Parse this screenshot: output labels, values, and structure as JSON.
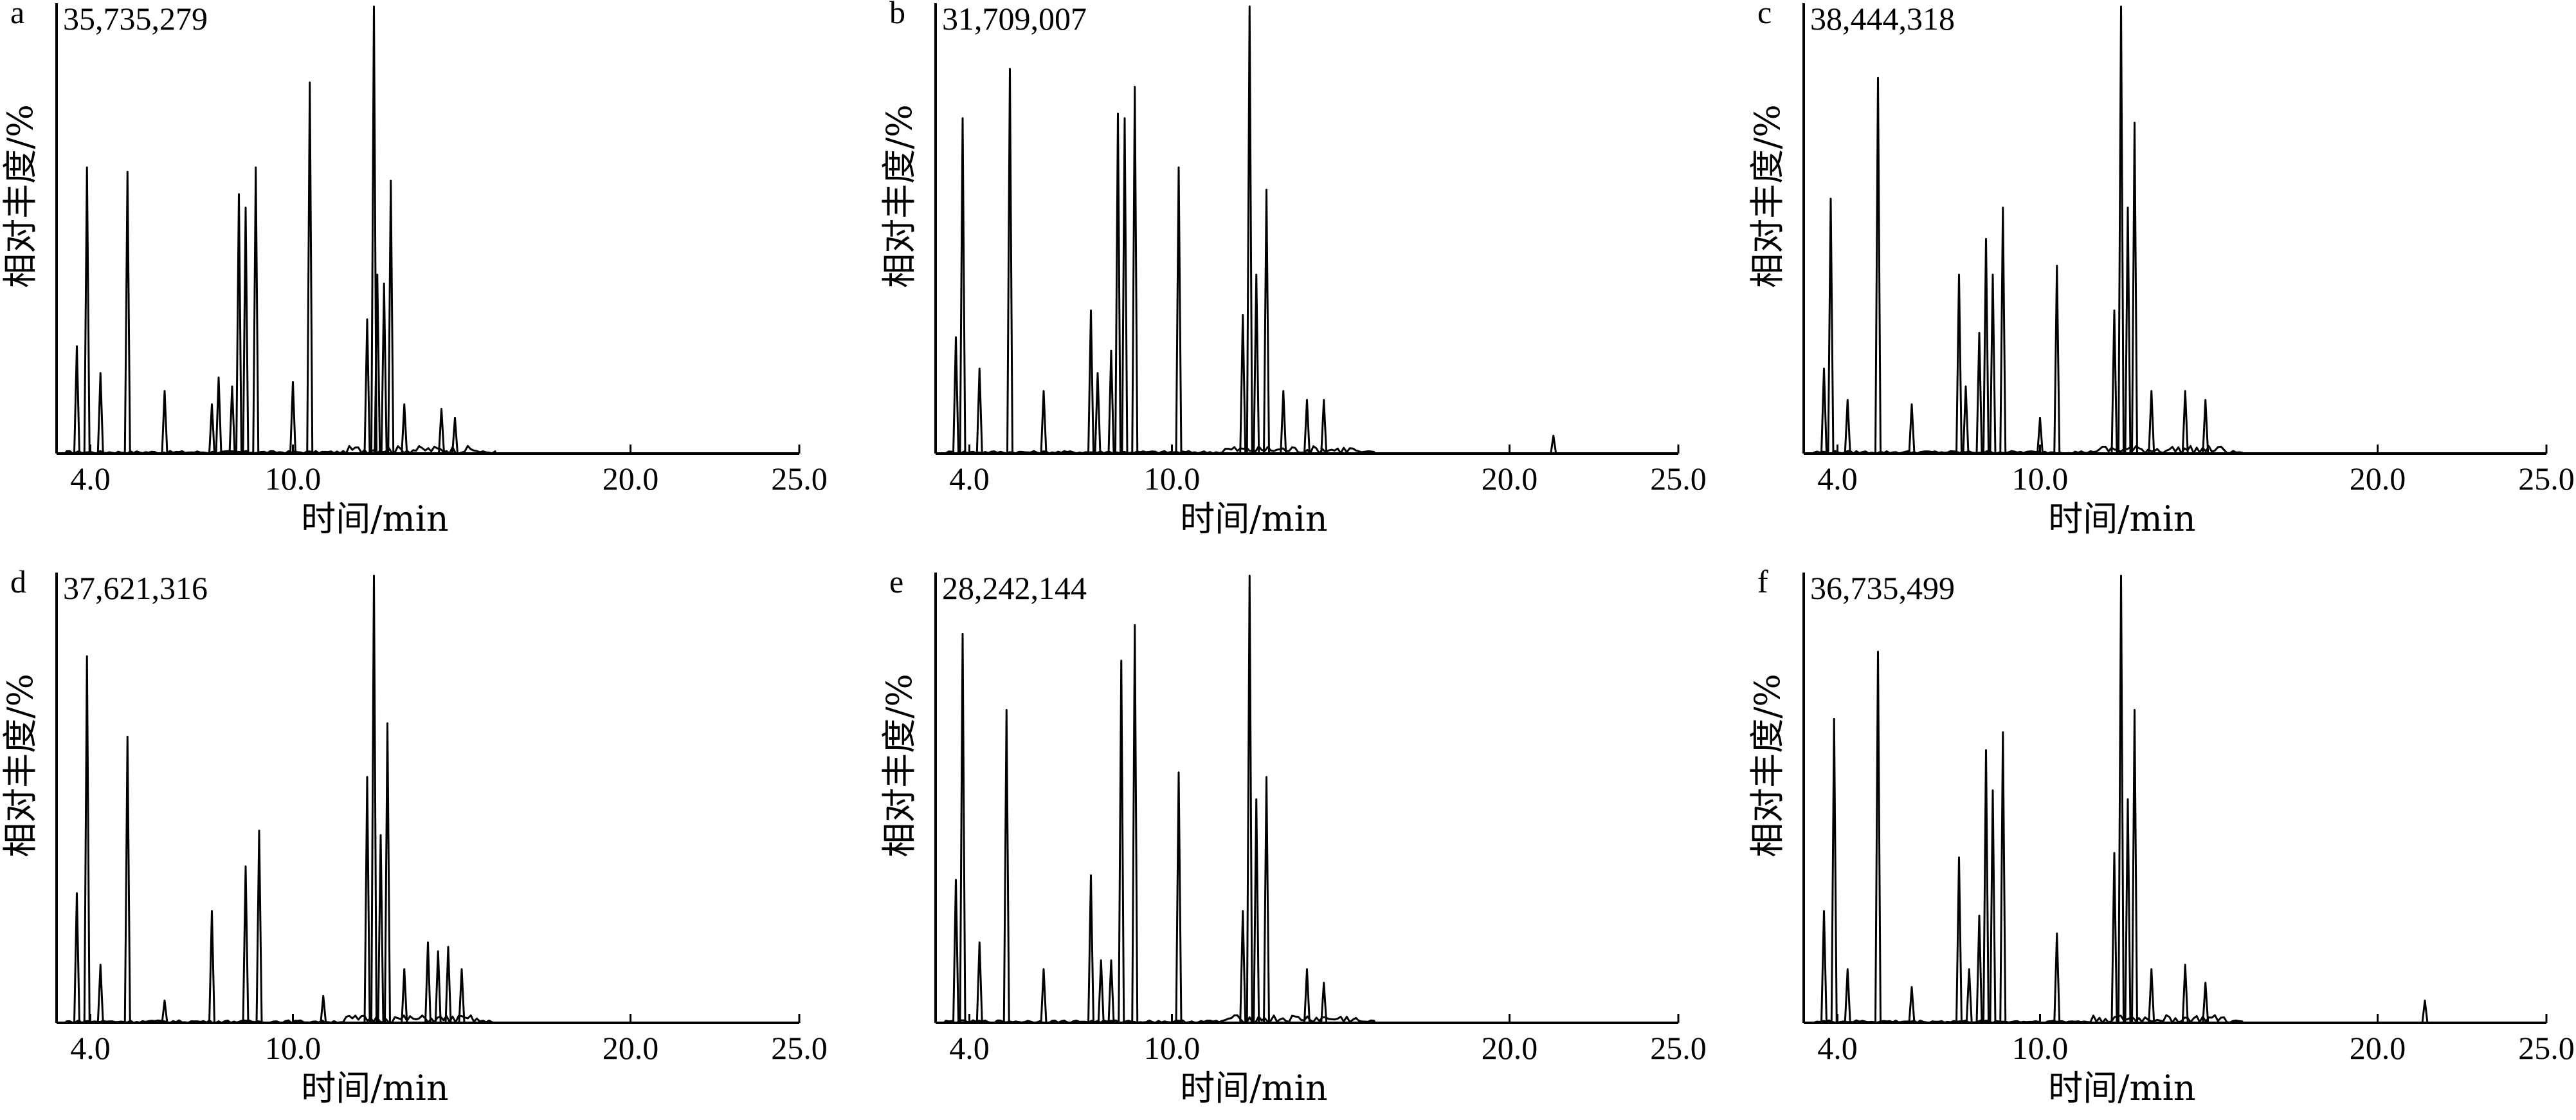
{
  "chart_data": [
    {
      "type": "line",
      "panel_label": "a",
      "max_intensity_label": "35,735,279",
      "xlabel": "时间/min",
      "ylabel": "相对丰度/%",
      "xticks": [
        "4.0",
        "10.0",
        "20.0",
        "25.0"
      ],
      "xlim": [
        3.0,
        25.0
      ],
      "ylim": [
        0,
        100
      ],
      "peaks": [
        {
          "rt": 3.6,
          "abundance": 24
        },
        {
          "rt": 3.9,
          "abundance": 64
        },
        {
          "rt": 4.3,
          "abundance": 18
        },
        {
          "rt": 5.1,
          "abundance": 63
        },
        {
          "rt": 6.2,
          "abundance": 14
        },
        {
          "rt": 7.6,
          "abundance": 11
        },
        {
          "rt": 7.8,
          "abundance": 17
        },
        {
          "rt": 8.2,
          "abundance": 15
        },
        {
          "rt": 8.4,
          "abundance": 58
        },
        {
          "rt": 8.6,
          "abundance": 55
        },
        {
          "rt": 8.9,
          "abundance": 64
        },
        {
          "rt": 10.0,
          "abundance": 16
        },
        {
          "rt": 10.5,
          "abundance": 83
        },
        {
          "rt": 12.2,
          "abundance": 30
        },
        {
          "rt": 12.4,
          "abundance": 100
        },
        {
          "rt": 12.5,
          "abundance": 40
        },
        {
          "rt": 12.7,
          "abundance": 38
        },
        {
          "rt": 12.9,
          "abundance": 61
        },
        {
          "rt": 13.3,
          "abundance": 11
        },
        {
          "rt": 14.4,
          "abundance": 10
        },
        {
          "rt": 14.8,
          "abundance": 8
        }
      ]
    },
    {
      "type": "line",
      "panel_label": "b",
      "max_intensity_label": "31,709,007",
      "xlabel": "时间/min",
      "ylabel": "相对丰度/%",
      "xticks": [
        "4.0",
        "10.0",
        "20.0",
        "25.0"
      ],
      "xlim": [
        3.0,
        25.0
      ],
      "ylim": [
        0,
        100
      ],
      "peaks": [
        {
          "rt": 3.6,
          "abundance": 26
        },
        {
          "rt": 3.8,
          "abundance": 75
        },
        {
          "rt": 4.3,
          "abundance": 19
        },
        {
          "rt": 5.2,
          "abundance": 86
        },
        {
          "rt": 6.2,
          "abundance": 14
        },
        {
          "rt": 7.6,
          "abundance": 32
        },
        {
          "rt": 7.8,
          "abundance": 18
        },
        {
          "rt": 8.2,
          "abundance": 23
        },
        {
          "rt": 8.4,
          "abundance": 76
        },
        {
          "rt": 8.6,
          "abundance": 75
        },
        {
          "rt": 8.9,
          "abundance": 82
        },
        {
          "rt": 10.2,
          "abundance": 64
        },
        {
          "rt": 12.1,
          "abundance": 31
        },
        {
          "rt": 12.3,
          "abundance": 100
        },
        {
          "rt": 12.5,
          "abundance": 40
        },
        {
          "rt": 12.8,
          "abundance": 59
        },
        {
          "rt": 13.3,
          "abundance": 14
        },
        {
          "rt": 14.0,
          "abundance": 12
        },
        {
          "rt": 14.5,
          "abundance": 12
        },
        {
          "rt": 21.3,
          "abundance": 4
        }
      ]
    },
    {
      "type": "line",
      "panel_label": "c",
      "max_intensity_label": "38,444,318",
      "xlabel": "时间/min",
      "ylabel": "相对丰度/%",
      "xticks": [
        "4.0",
        "10.0",
        "20.0",
        "25.0"
      ],
      "xlim": [
        3.0,
        25.0
      ],
      "ylim": [
        0,
        100
      ],
      "peaks": [
        {
          "rt": 3.6,
          "abundance": 19
        },
        {
          "rt": 3.8,
          "abundance": 57
        },
        {
          "rt": 4.3,
          "abundance": 12
        },
        {
          "rt": 5.2,
          "abundance": 84
        },
        {
          "rt": 6.2,
          "abundance": 11
        },
        {
          "rt": 7.6,
          "abundance": 40
        },
        {
          "rt": 7.8,
          "abundance": 15
        },
        {
          "rt": 8.2,
          "abundance": 27
        },
        {
          "rt": 8.4,
          "abundance": 48
        },
        {
          "rt": 8.6,
          "abundance": 40
        },
        {
          "rt": 8.9,
          "abundance": 55
        },
        {
          "rt": 10.0,
          "abundance": 8
        },
        {
          "rt": 10.5,
          "abundance": 42
        },
        {
          "rt": 12.2,
          "abundance": 32
        },
        {
          "rt": 12.4,
          "abundance": 100
        },
        {
          "rt": 12.6,
          "abundance": 55
        },
        {
          "rt": 12.8,
          "abundance": 74
        },
        {
          "rt": 13.3,
          "abundance": 14
        },
        {
          "rt": 14.3,
          "abundance": 14
        },
        {
          "rt": 14.9,
          "abundance": 12
        }
      ]
    },
    {
      "type": "line",
      "panel_label": "d",
      "max_intensity_label": "37,621,316",
      "xlabel": "时间/min",
      "ylabel": "相对丰度/%",
      "xticks": [
        "4.0",
        "10.0",
        "20.0",
        "25.0"
      ],
      "xlim": [
        3.0,
        25.0
      ],
      "ylim": [
        0,
        100
      ],
      "peaks": [
        {
          "rt": 3.6,
          "abundance": 29
        },
        {
          "rt": 3.9,
          "abundance": 82
        },
        {
          "rt": 4.3,
          "abundance": 13
        },
        {
          "rt": 5.1,
          "abundance": 64
        },
        {
          "rt": 6.2,
          "abundance": 5
        },
        {
          "rt": 7.6,
          "abundance": 25
        },
        {
          "rt": 8.6,
          "abundance": 35
        },
        {
          "rt": 9.0,
          "abundance": 43
        },
        {
          "rt": 10.9,
          "abundance": 6
        },
        {
          "rt": 12.2,
          "abundance": 55
        },
        {
          "rt": 12.4,
          "abundance": 100
        },
        {
          "rt": 12.6,
          "abundance": 42
        },
        {
          "rt": 12.8,
          "abundance": 67
        },
        {
          "rt": 13.3,
          "abundance": 12
        },
        {
          "rt": 14.0,
          "abundance": 18
        },
        {
          "rt": 14.3,
          "abundance": 16
        },
        {
          "rt": 14.6,
          "abundance": 17
        },
        {
          "rt": 15.0,
          "abundance": 12
        }
      ]
    },
    {
      "type": "line",
      "panel_label": "e",
      "max_intensity_label": "28,242,144",
      "xlabel": "时间/min",
      "ylabel": "相对丰度/%",
      "xticks": [
        "4.0",
        "10.0",
        "20.0",
        "25.0"
      ],
      "xlim": [
        3.0,
        25.0
      ],
      "ylim": [
        0,
        100
      ],
      "peaks": [
        {
          "rt": 3.6,
          "abundance": 32
        },
        {
          "rt": 3.8,
          "abundance": 87
        },
        {
          "rt": 4.3,
          "abundance": 18
        },
        {
          "rt": 5.1,
          "abundance": 70
        },
        {
          "rt": 6.2,
          "abundance": 12
        },
        {
          "rt": 7.6,
          "abundance": 33
        },
        {
          "rt": 7.9,
          "abundance": 14
        },
        {
          "rt": 8.2,
          "abundance": 14
        },
        {
          "rt": 8.5,
          "abundance": 81
        },
        {
          "rt": 8.9,
          "abundance": 89
        },
        {
          "rt": 10.2,
          "abundance": 56
        },
        {
          "rt": 12.1,
          "abundance": 25
        },
        {
          "rt": 12.3,
          "abundance": 100
        },
        {
          "rt": 12.5,
          "abundance": 50
        },
        {
          "rt": 12.8,
          "abundance": 55
        },
        {
          "rt": 14.0,
          "abundance": 12
        },
        {
          "rt": 14.5,
          "abundance": 9
        }
      ]
    },
    {
      "type": "line",
      "panel_label": "f",
      "max_intensity_label": "36,735,499",
      "xlabel": "时间/min",
      "ylabel": "相对丰度/%",
      "xticks": [
        "4.0",
        "10.0",
        "20.0",
        "25.0"
      ],
      "xlim": [
        3.0,
        25.0
      ],
      "ylim": [
        0,
        100
      ],
      "peaks": [
        {
          "rt": 3.6,
          "abundance": 25
        },
        {
          "rt": 3.9,
          "abundance": 68
        },
        {
          "rt": 4.3,
          "abundance": 12
        },
        {
          "rt": 5.2,
          "abundance": 83
        },
        {
          "rt": 6.2,
          "abundance": 8
        },
        {
          "rt": 7.6,
          "abundance": 37
        },
        {
          "rt": 7.9,
          "abundance": 12
        },
        {
          "rt": 8.2,
          "abundance": 24
        },
        {
          "rt": 8.4,
          "abundance": 61
        },
        {
          "rt": 8.6,
          "abundance": 52
        },
        {
          "rt": 8.9,
          "abundance": 65
        },
        {
          "rt": 10.5,
          "abundance": 20
        },
        {
          "rt": 12.2,
          "abundance": 38
        },
        {
          "rt": 12.4,
          "abundance": 100
        },
        {
          "rt": 12.6,
          "abundance": 50
        },
        {
          "rt": 12.8,
          "abundance": 70
        },
        {
          "rt": 13.3,
          "abundance": 12
        },
        {
          "rt": 14.3,
          "abundance": 13
        },
        {
          "rt": 14.9,
          "abundance": 9
        },
        {
          "rt": 21.4,
          "abundance": 5
        }
      ]
    }
  ]
}
